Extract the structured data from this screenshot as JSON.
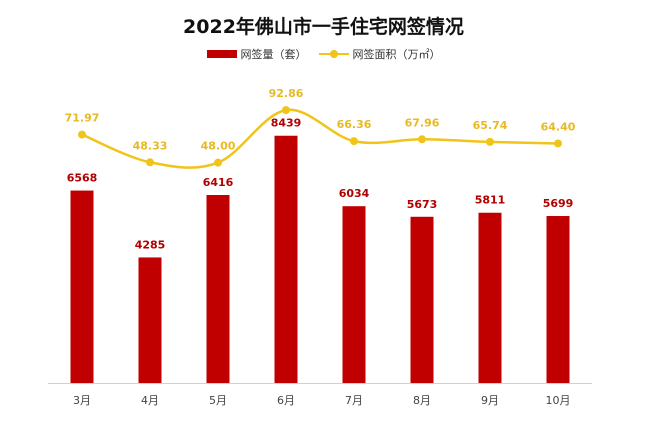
{
  "chart_data": {
    "type": "bar",
    "title": "2022年佛山市一手住宅网签情况",
    "categories": [
      "3月",
      "4月",
      "5月",
      "6月",
      "7月",
      "8月",
      "9月",
      "10月"
    ],
    "series": [
      {
        "name": "网签量（套）",
        "type": "bar",
        "color": "#c00000",
        "values": [
          6568,
          4285,
          6416,
          8439,
          6034,
          5673,
          5811,
          5699
        ]
      },
      {
        "name": "网签面积（万㎡）",
        "type": "line",
        "color": "#f0c419",
        "values": [
          71.97,
          48.33,
          48.0,
          92.86,
          66.36,
          67.96,
          65.74,
          64.4
        ]
      }
    ],
    "bar_value_labels": [
      "6568",
      "4285",
      "6416",
      "8439",
      "6034",
      "5673",
      "5811",
      "5699"
    ],
    "line_value_labels": [
      "71.97",
      "48.33",
      "48.00",
      "92.86",
      "66.36",
      "67.96",
      "65.74",
      "64.40"
    ],
    "bar_ylim": [
      0,
      10000
    ],
    "line_ylim": [
      -140,
      110
    ],
    "grid": false,
    "legend_position": "top-center",
    "xlabel": "",
    "ylabel": ""
  }
}
